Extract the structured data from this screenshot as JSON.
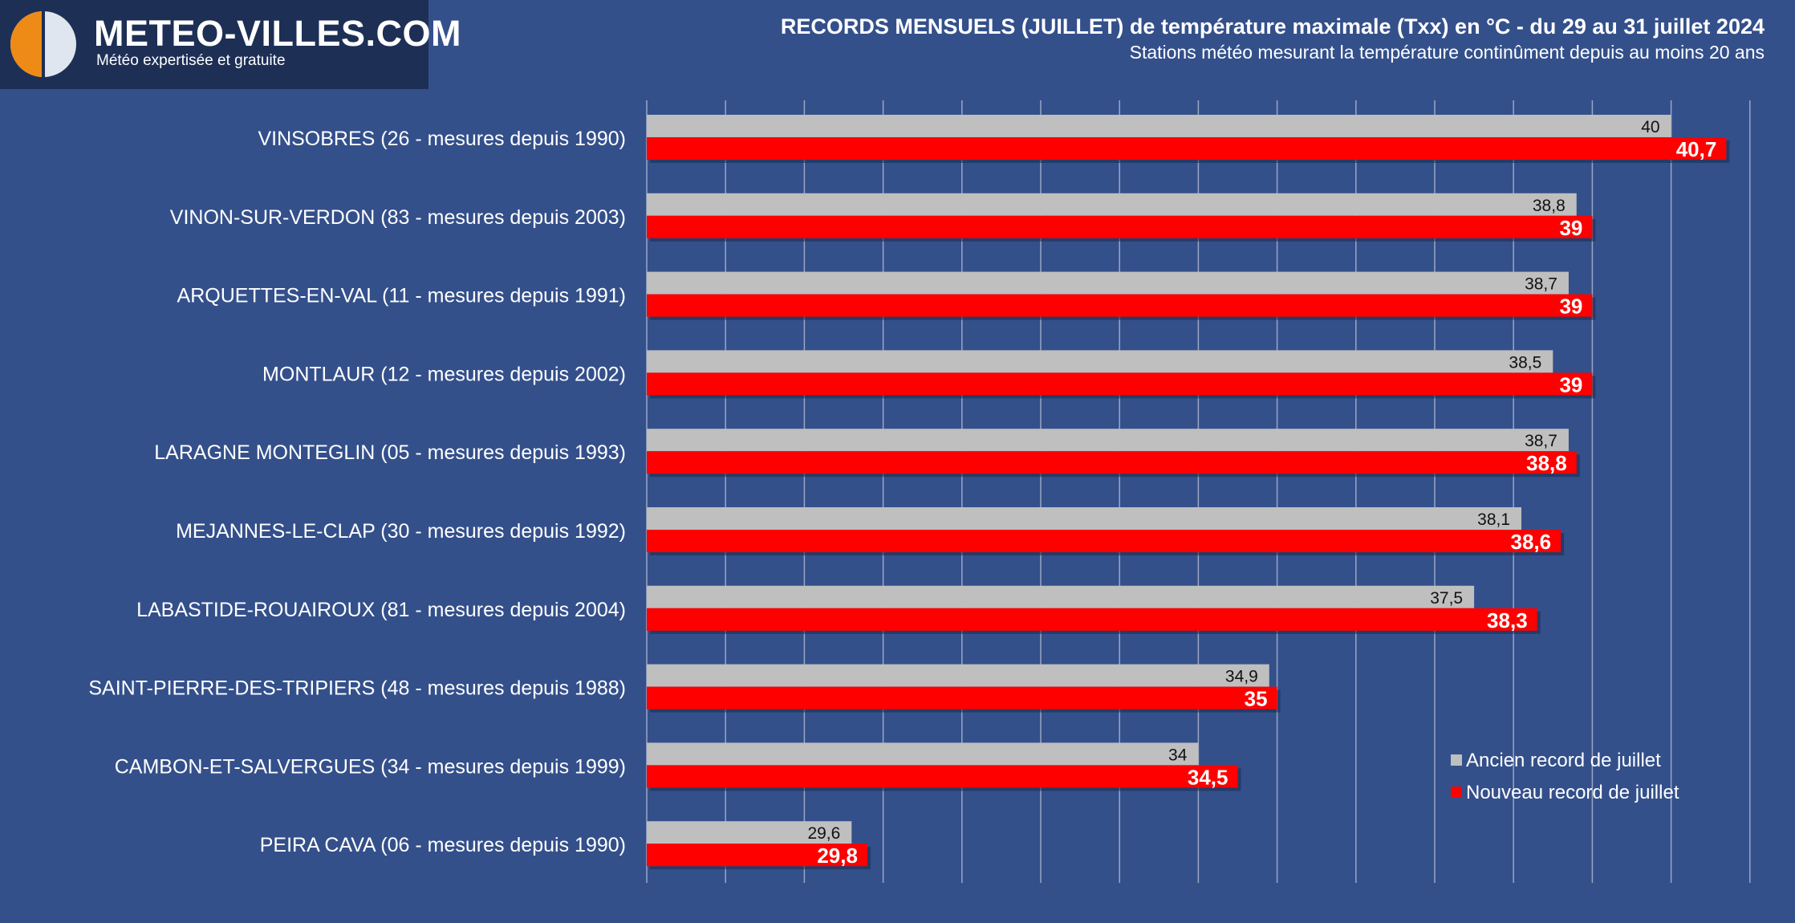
{
  "brand": {
    "name": "METEO-VILLES.COM",
    "tagline": "Météo expertisée et gratuite"
  },
  "colors": {
    "background": "#34508b",
    "logo_background": "#1d2f55",
    "old_record": "#bfbfbf",
    "new_record": "#ff0000",
    "grid": "#9aa6c4"
  },
  "chart_data": {
    "type": "bar",
    "orientation": "horizontal",
    "title": "RECORDS MENSUELS (JUILLET) de température maximale (Txx) en °C - du 29 au 31 juillet 2024",
    "subtitle": "Stations météo mesurant la température continûment depuis au moins 20 ans",
    "categories": [
      "VINSOBRES (26 - mesures depuis 1990)",
      "VINON-SUR-VERDON (83 - mesures depuis 2003)",
      "ARQUETTES-EN-VAL (11 - mesures depuis 1991)",
      "MONTLAUR (12 - mesures depuis 2002)",
      "LARAGNE MONTEGLIN (05 - mesures depuis 1993)",
      "MEJANNES-LE-CLAP (30 - mesures depuis 1992)",
      "LABASTIDE-ROUAIROUX (81 - mesures depuis 2004)",
      "SAINT-PIERRE-DES-TRIPIERS (48 - mesures depuis 1988)",
      "CAMBON-ET-SALVERGUES (34 - mesures depuis 1999)",
      "PEIRA CAVA (06 - mesures depuis 1990)"
    ],
    "series": [
      {
        "name": "Ancien record de juillet",
        "values": [
          40,
          38.8,
          38.7,
          38.5,
          38.7,
          38.1,
          37.5,
          34.9,
          34,
          29.6
        ],
        "labels": [
          "40",
          "38,8",
          "38,7",
          "38,5",
          "38,7",
          "38,1",
          "37,5",
          "34,9",
          "34",
          "29,6"
        ]
      },
      {
        "name": "Nouveau record de juillet",
        "values": [
          40.7,
          39,
          39,
          39,
          38.8,
          38.6,
          38.3,
          35,
          34.5,
          29.8
        ],
        "labels": [
          "40,7",
          "39",
          "39",
          "39",
          "38,8",
          "38,6",
          "38,3",
          "35",
          "34,5",
          "29,8"
        ]
      }
    ],
    "xlim": [
      27,
      41
    ],
    "grid": true,
    "legend_position": "bottom-right"
  }
}
